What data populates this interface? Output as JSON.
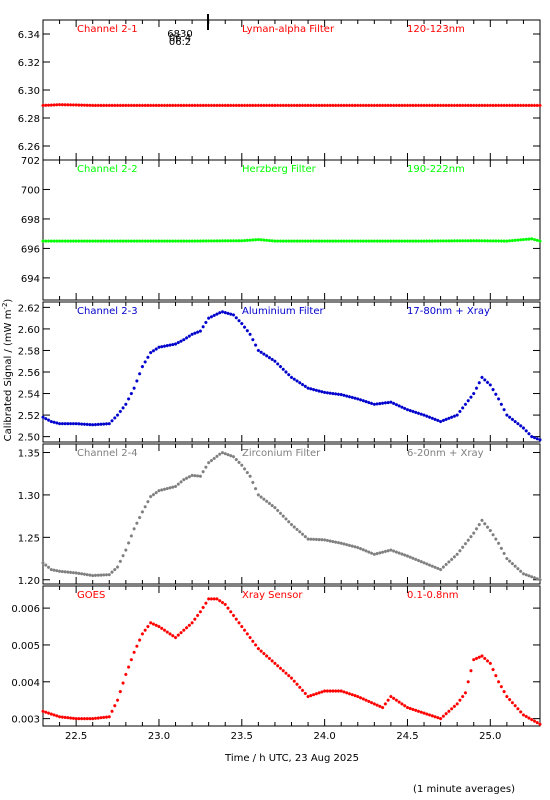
{
  "chart_data": {
    "type": "scatter",
    "xlabel": "Time / h UTC, 23 Aug 2025",
    "ylabel_main": "Calibrated Signal / (mW m",
    "ylabel_sup": "-2",
    "ylabel_close": ")",
    "footnote": "(1 minute averages)",
    "xlim": [
      22.3,
      25.3
    ],
    "xticks": [
      22.5,
      23.0,
      23.5,
      24.0,
      24.5,
      25.0
    ],
    "xtick_labels": [
      "22.5",
      "23.0",
      "23.5",
      "24.0",
      "24.5",
      "25.0"
    ],
    "marker_text": [
      "6830",
      "06.4",
      "06.2"
    ],
    "panels": [
      {
        "channel": "Channel 2-1",
        "filter": "Lyman-alpha Filter",
        "band": "120-123nm",
        "color": "#ff0000",
        "ylim": [
          6.25,
          6.35
        ],
        "yticks": [
          6.26,
          6.28,
          6.3,
          6.32,
          6.34
        ],
        "ytick_labels": [
          "6.26",
          "6.28",
          "6.30",
          "6.32",
          "6.34"
        ],
        "points": [
          [
            22.3,
            6.289
          ],
          [
            22.4,
            6.2895
          ],
          [
            22.5,
            6.2893
          ],
          [
            22.6,
            6.289
          ],
          [
            22.8,
            6.289
          ],
          [
            23.0,
            6.289
          ],
          [
            23.2,
            6.289
          ],
          [
            23.4,
            6.289
          ],
          [
            23.6,
            6.289
          ],
          [
            23.8,
            6.289
          ],
          [
            24.0,
            6.289
          ],
          [
            24.2,
            6.289
          ],
          [
            24.4,
            6.289
          ],
          [
            24.6,
            6.289
          ],
          [
            24.8,
            6.289
          ],
          [
            25.0,
            6.289
          ],
          [
            25.3,
            6.289
          ]
        ]
      },
      {
        "channel": "Channel 2-2",
        "filter": "Herzberg Filter",
        "band": "190-222nm",
        "color": "#00ff00",
        "ylim": [
          692.5,
          702
        ],
        "yticks": [
          694,
          696,
          698,
          700,
          702
        ],
        "ytick_labels": [
          "694",
          "696",
          "698",
          "700",
          "702"
        ],
        "points": [
          [
            22.3,
            696.5
          ],
          [
            22.6,
            696.5
          ],
          [
            22.9,
            696.5
          ],
          [
            23.2,
            696.5
          ],
          [
            23.5,
            696.52
          ],
          [
            23.6,
            696.6
          ],
          [
            23.7,
            696.5
          ],
          [
            24.0,
            696.5
          ],
          [
            24.3,
            696.5
          ],
          [
            24.6,
            696.5
          ],
          [
            24.9,
            696.52
          ],
          [
            25.1,
            696.5
          ],
          [
            25.2,
            696.6
          ],
          [
            25.25,
            696.65
          ],
          [
            25.3,
            696.5
          ]
        ]
      },
      {
        "channel": "Channel 2-3",
        "filter": "Aluminium Filter",
        "band": "17-80nm + Xray",
        "color": "#0000cc",
        "ylim": [
          2.495,
          2.625
        ],
        "yticks": [
          2.5,
          2.52,
          2.54,
          2.56,
          2.58,
          2.6,
          2.62
        ],
        "ytick_labels": [
          "2.50",
          "2.52",
          "2.54",
          "2.56",
          "2.58",
          "2.60",
          "2.62"
        ],
        "points": [
          [
            22.3,
            2.518
          ],
          [
            22.35,
            2.514
          ],
          [
            22.4,
            2.512
          ],
          [
            22.5,
            2.512
          ],
          [
            22.6,
            2.511
          ],
          [
            22.7,
            2.512
          ],
          [
            22.75,
            2.52
          ],
          [
            22.8,
            2.53
          ],
          [
            22.85,
            2.545
          ],
          [
            22.9,
            2.565
          ],
          [
            22.95,
            2.578
          ],
          [
            23.0,
            2.583
          ],
          [
            23.1,
            2.586
          ],
          [
            23.15,
            2.59
          ],
          [
            23.2,
            2.595
          ],
          [
            23.25,
            2.598
          ],
          [
            23.3,
            2.61
          ],
          [
            23.38,
            2.616
          ],
          [
            23.45,
            2.613
          ],
          [
            23.5,
            2.605
          ],
          [
            23.55,
            2.595
          ],
          [
            23.6,
            2.58
          ],
          [
            23.7,
            2.57
          ],
          [
            23.8,
            2.555
          ],
          [
            23.9,
            2.545
          ],
          [
            24.0,
            2.541
          ],
          [
            24.1,
            2.539
          ],
          [
            24.2,
            2.535
          ],
          [
            24.3,
            2.53
          ],
          [
            24.4,
            2.532
          ],
          [
            24.5,
            2.525
          ],
          [
            24.6,
            2.52
          ],
          [
            24.7,
            2.514
          ],
          [
            24.8,
            2.52
          ],
          [
            24.85,
            2.53
          ],
          [
            24.9,
            2.54
          ],
          [
            24.95,
            2.555
          ],
          [
            25.0,
            2.548
          ],
          [
            25.05,
            2.535
          ],
          [
            25.1,
            2.52
          ],
          [
            25.2,
            2.508
          ],
          [
            25.25,
            2.5
          ],
          [
            25.3,
            2.497
          ]
        ]
      },
      {
        "channel": "Channel 2-4",
        "filter": "Zirconium Filter",
        "band": "6-20nm + Xray",
        "color": "#7f7f7f",
        "ylim": [
          1.195,
          1.36
        ],
        "yticks": [
          1.2,
          1.25,
          1.3,
          1.35
        ],
        "ytick_labels": [
          "1.20",
          "1.25",
          "1.30",
          "1.35"
        ],
        "points": [
          [
            22.3,
            1.22
          ],
          [
            22.35,
            1.212
          ],
          [
            22.4,
            1.21
          ],
          [
            22.5,
            1.208
          ],
          [
            22.6,
            1.205
          ],
          [
            22.7,
            1.206
          ],
          [
            22.75,
            1.215
          ],
          [
            22.8,
            1.235
          ],
          [
            22.85,
            1.26
          ],
          [
            22.9,
            1.28
          ],
          [
            22.95,
            1.298
          ],
          [
            23.0,
            1.305
          ],
          [
            23.1,
            1.31
          ],
          [
            23.15,
            1.318
          ],
          [
            23.2,
            1.323
          ],
          [
            23.25,
            1.322
          ],
          [
            23.3,
            1.338
          ],
          [
            23.38,
            1.35
          ],
          [
            23.45,
            1.345
          ],
          [
            23.5,
            1.335
          ],
          [
            23.55,
            1.322
          ],
          [
            23.6,
            1.3
          ],
          [
            23.7,
            1.285
          ],
          [
            23.8,
            1.265
          ],
          [
            23.9,
            1.248
          ],
          [
            24.0,
            1.247
          ],
          [
            24.1,
            1.243
          ],
          [
            24.2,
            1.238
          ],
          [
            24.3,
            1.23
          ],
          [
            24.4,
            1.235
          ],
          [
            24.5,
            1.228
          ],
          [
            24.6,
            1.22
          ],
          [
            24.7,
            1.212
          ],
          [
            24.8,
            1.23
          ],
          [
            24.9,
            1.255
          ],
          [
            24.95,
            1.27
          ],
          [
            25.0,
            1.258
          ],
          [
            25.05,
            1.243
          ],
          [
            25.1,
            1.225
          ],
          [
            25.2,
            1.207
          ],
          [
            25.3,
            1.2
          ]
        ]
      },
      {
        "channel": "GOES",
        "filter": "Xray Sensor",
        "band": "0.1-0.8nm",
        "color": "#ff0000",
        "ylim": [
          0.0028,
          0.0066
        ],
        "yticks": [
          0.003,
          0.004,
          0.005,
          0.006
        ],
        "ytick_labels": [
          "0.003",
          "0.004",
          "0.005",
          "0.006"
        ],
        "points": [
          [
            22.3,
            0.0032
          ],
          [
            22.4,
            0.00305
          ],
          [
            22.5,
            0.003
          ],
          [
            22.6,
            0.003
          ],
          [
            22.7,
            0.00305
          ],
          [
            22.75,
            0.0035
          ],
          [
            22.8,
            0.0042
          ],
          [
            22.85,
            0.0048
          ],
          [
            22.9,
            0.0053
          ],
          [
            22.95,
            0.0056
          ],
          [
            23.0,
            0.0055
          ],
          [
            23.1,
            0.0052
          ],
          [
            23.15,
            0.0054
          ],
          [
            23.2,
            0.0056
          ],
          [
            23.25,
            0.0059
          ],
          [
            23.3,
            0.00625
          ],
          [
            23.35,
            0.00625
          ],
          [
            23.4,
            0.0061
          ],
          [
            23.5,
            0.0055
          ],
          [
            23.6,
            0.0049
          ],
          [
            23.7,
            0.0045
          ],
          [
            23.8,
            0.0041
          ],
          [
            23.9,
            0.0036
          ],
          [
            24.0,
            0.00375
          ],
          [
            24.1,
            0.00375
          ],
          [
            24.2,
            0.0036
          ],
          [
            24.3,
            0.0034
          ],
          [
            24.35,
            0.0033
          ],
          [
            24.4,
            0.0036
          ],
          [
            24.5,
            0.0033
          ],
          [
            24.6,
            0.00315
          ],
          [
            24.7,
            0.003
          ],
          [
            24.75,
            0.0032
          ],
          [
            24.8,
            0.0034
          ],
          [
            24.85,
            0.0037
          ],
          [
            24.9,
            0.0046
          ],
          [
            24.95,
            0.0047
          ],
          [
            25.0,
            0.0045
          ],
          [
            25.05,
            0.004
          ],
          [
            25.1,
            0.0036
          ],
          [
            25.2,
            0.0031
          ],
          [
            25.3,
            0.00285
          ]
        ]
      }
    ]
  }
}
